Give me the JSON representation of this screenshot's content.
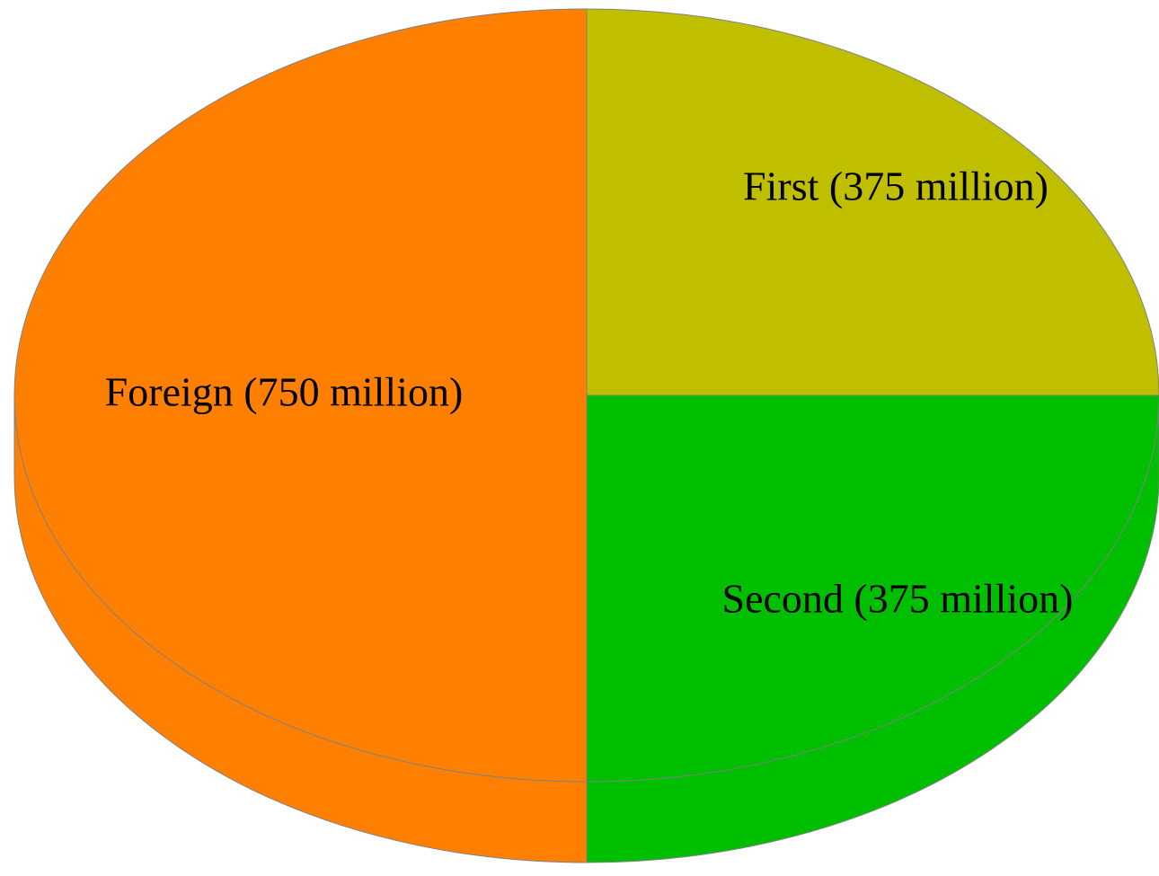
{
  "chart_data": {
    "type": "pie",
    "style": "3d",
    "unit": "million",
    "slices": [
      {
        "label": "First (375 million)",
        "category": "First",
        "value": 375,
        "color": "#bfbf00"
      },
      {
        "label": "Second (375 million)",
        "category": "Second",
        "value": 375,
        "color": "#00bf00"
      },
      {
        "label": "Foreign (750 million)",
        "category": "Foreign",
        "value": 750,
        "color": "#ff8000"
      }
    ],
    "edge_color": "#808080",
    "background": "#ffffff"
  }
}
